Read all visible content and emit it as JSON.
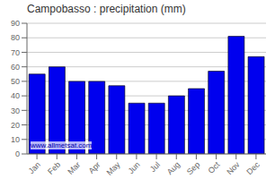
{
  "chart_data": {
    "type": "bar",
    "title": "Campobasso : precipitation (mm)",
    "categories": [
      "Jan",
      "Feb",
      "Mar",
      "Apr",
      "May",
      "Jun",
      "Jul",
      "Aug",
      "Sep",
      "Oct",
      "Nov",
      "Dec"
    ],
    "values": [
      55,
      60,
      50,
      50,
      47,
      35,
      35,
      40,
      45,
      57,
      81,
      67
    ],
    "color": "#0000ee",
    "ylim": [
      0,
      90
    ],
    "yticks": [
      0,
      10,
      20,
      30,
      40,
      50,
      60,
      70,
      80,
      90
    ],
    "grid": true,
    "annotations": [
      "www.allmetsat.com"
    ]
  }
}
